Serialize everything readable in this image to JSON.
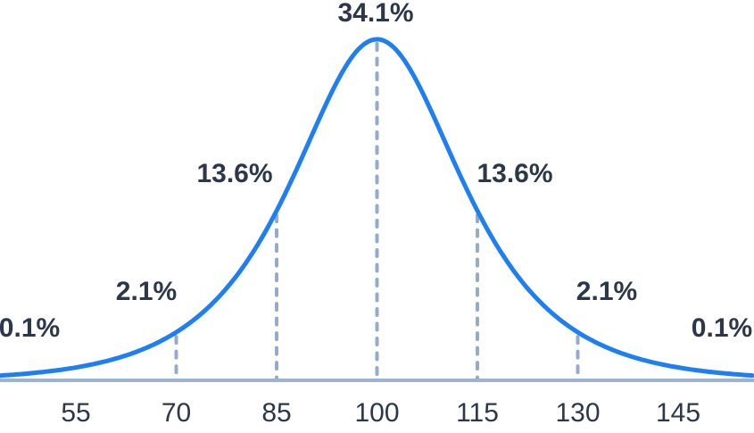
{
  "chart_data": {
    "type": "area",
    "title": "",
    "xlabel": "",
    "ylabel": "",
    "grid": false,
    "legend": false,
    "curve": {
      "shape": "bell",
      "mean": 100,
      "sd": 15
    },
    "x_ticks": [
      55,
      70,
      85,
      100,
      115,
      130,
      145
    ],
    "tick_labels": [
      "55",
      "70",
      "85",
      "100",
      "115",
      "130",
      "145"
    ],
    "dashed_boundaries": [
      70,
      85,
      100,
      115,
      130
    ],
    "percent_labels": [
      "0.1%",
      "2.1%",
      "13.6%",
      "34.1%",
      "13.6%",
      "2.1%",
      "0.1%"
    ],
    "segments": [
      {
        "label": "0.1%",
        "value": 0.1
      },
      {
        "label": "2.1%",
        "value": 2.1
      },
      {
        "label": "13.6%",
        "value": 13.6
      },
      {
        "label": "34.1%",
        "value": 34.1
      },
      {
        "label": "13.6%",
        "value": 13.6
      },
      {
        "label": "2.1%",
        "value": 2.1
      },
      {
        "label": "0.1%",
        "value": 0.1
      }
    ],
    "colors": {
      "curve": "#1E7FF2",
      "dashes": "#96ABC9",
      "baseline": "#9DB3CF",
      "text": "#2C3749",
      "background": "#FFFFFF"
    }
  }
}
